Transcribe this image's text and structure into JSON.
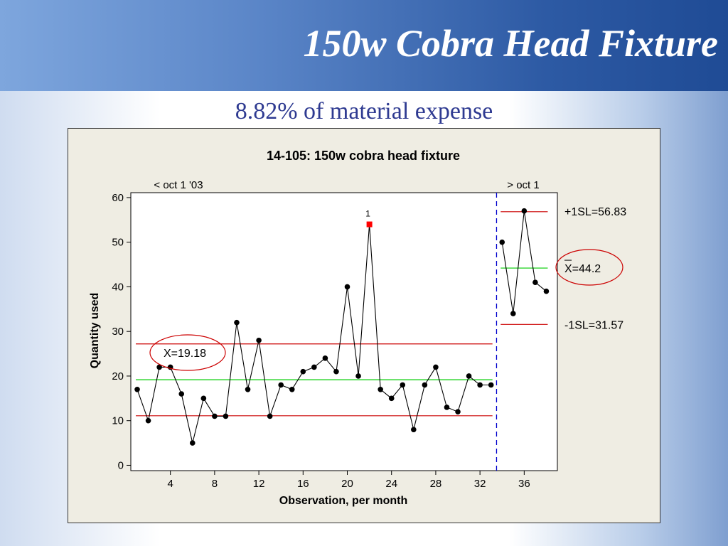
{
  "slide": {
    "title": "150w Cobra Head Fixture",
    "subtitle": "8.82% of material expense"
  },
  "chart_data": {
    "type": "line",
    "title": "14-105:  150w cobra head fixture",
    "xlabel": "Observation, per month",
    "ylabel": "Quantity used",
    "xlim": [
      0,
      39
    ],
    "ylim": [
      0,
      60
    ],
    "xticks": [
      4,
      8,
      12,
      16,
      20,
      24,
      28,
      32,
      36
    ],
    "yticks": [
      0,
      10,
      20,
      30,
      40,
      50,
      60
    ],
    "grid": false,
    "phases": [
      {
        "label": "< oct 1 '03",
        "x": [
          1,
          2,
          3,
          4,
          5,
          6,
          7,
          8,
          9,
          10,
          11,
          12,
          13,
          14,
          15,
          16,
          17,
          18,
          19,
          20,
          21,
          22,
          23,
          24,
          25,
          26,
          27,
          28,
          29,
          30,
          31,
          32,
          33
        ],
        "values": [
          17,
          10,
          22,
          22,
          16,
          5,
          15,
          11,
          11,
          32,
          17,
          28,
          11,
          18,
          17,
          21,
          22,
          24,
          21,
          40,
          20,
          54,
          17,
          15,
          18,
          8,
          18,
          22,
          13,
          12,
          20,
          18,
          18
        ],
        "center": 19.18,
        "ucl": 27.2,
        "lcl": 11.1,
        "center_label": "X=19.18"
      },
      {
        "label": "> oct 1",
        "x": [
          34,
          35,
          36,
          37,
          38
        ],
        "values": [
          50,
          34,
          57,
          41,
          39
        ],
        "center": 44.2,
        "ucl": 56.83,
        "lcl": 31.57,
        "center_label": "X=44.2",
        "ucl_label": "+1SL=56.83",
        "lcl_label": "-1SL=31.57"
      }
    ],
    "phase_split": 33.5,
    "flagged_points": [
      {
        "x": 22,
        "value": 54,
        "label": "1"
      }
    ],
    "colors": {
      "data": "#000000",
      "center": "#00cc00",
      "limits": "#cc0000",
      "flag": "#ff0000",
      "split": "#0000cc",
      "annotation": "#cc0000"
    }
  }
}
